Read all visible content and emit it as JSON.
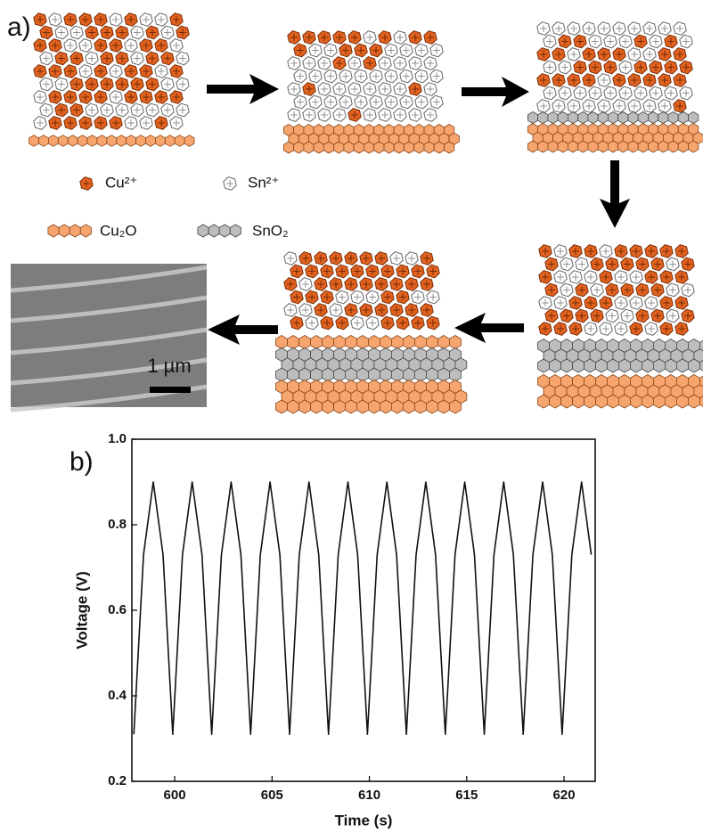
{
  "figure": {
    "panel_a": "a)",
    "panel_b": "b)",
    "legend": [
      "Cu²⁺",
      "Sn²⁺",
      "Cu₂O",
      "SnO₂"
    ],
    "scale_bar": "1 µm"
  },
  "chart_data": {
    "type": "line",
    "x_label": "Time (s)",
    "y_label": "Voltage (V)",
    "color": "#111111",
    "x": [
      597.9,
      598.4,
      598.9,
      599.4,
      599.9,
      600.4,
      600.9,
      601.4,
      601.9,
      602.4,
      602.9,
      603.4,
      603.9,
      604.4,
      604.9,
      605.4,
      605.9,
      606.4,
      606.9,
      607.4,
      607.9,
      608.4,
      608.9,
      609.4,
      609.9,
      610.4,
      610.9,
      611.4,
      611.9,
      612.4,
      612.9,
      613.4,
      613.9,
      614.4,
      614.9,
      615.4,
      615.9,
      616.4,
      616.9,
      617.4,
      617.9,
      618.4,
      618.9,
      619.4,
      619.9,
      620.4,
      620.9,
      621.4
    ],
    "values": [
      0.31,
      0.73,
      0.9,
      0.73,
      0.31,
      0.73,
      0.9,
      0.73,
      0.31,
      0.73,
      0.9,
      0.73,
      0.31,
      0.73,
      0.9,
      0.73,
      0.31,
      0.73,
      0.9,
      0.73,
      0.31,
      0.73,
      0.9,
      0.73,
      0.31,
      0.73,
      0.9,
      0.73,
      0.31,
      0.73,
      0.9,
      0.73,
      0.31,
      0.73,
      0.9,
      0.73,
      0.31,
      0.73,
      0.9,
      0.73,
      0.31,
      0.73,
      0.9,
      0.73,
      0.31,
      0.73,
      0.9,
      0.73
    ],
    "xlim": [
      597.8,
      621.6
    ],
    "ylim": [
      0.2,
      1.0
    ],
    "xticks": [
      600,
      605,
      610,
      615,
      620
    ],
    "yticks": [
      0.2,
      0.4,
      0.6,
      0.8,
      {
        "value": 1,
        "label": "1.0"
      }
    ]
  }
}
